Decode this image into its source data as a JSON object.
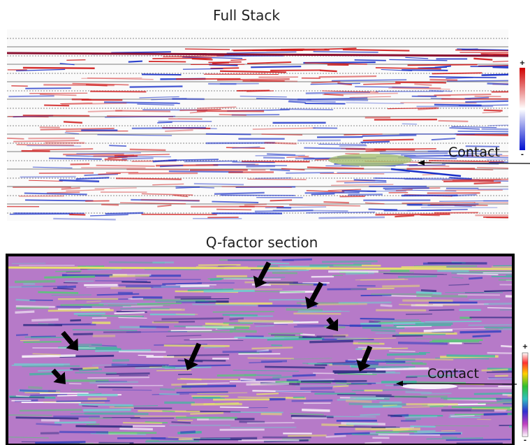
{
  "panels": [
    {
      "title": "Full Stack",
      "annotation": "Contact",
      "colorbar": {
        "max_label": "+",
        "min_label": "-"
      }
    },
    {
      "title": "Q-factor section",
      "annotation": "Contact",
      "colorbar": {
        "max_label": "+",
        "min_label": "-"
      }
    }
  ]
}
